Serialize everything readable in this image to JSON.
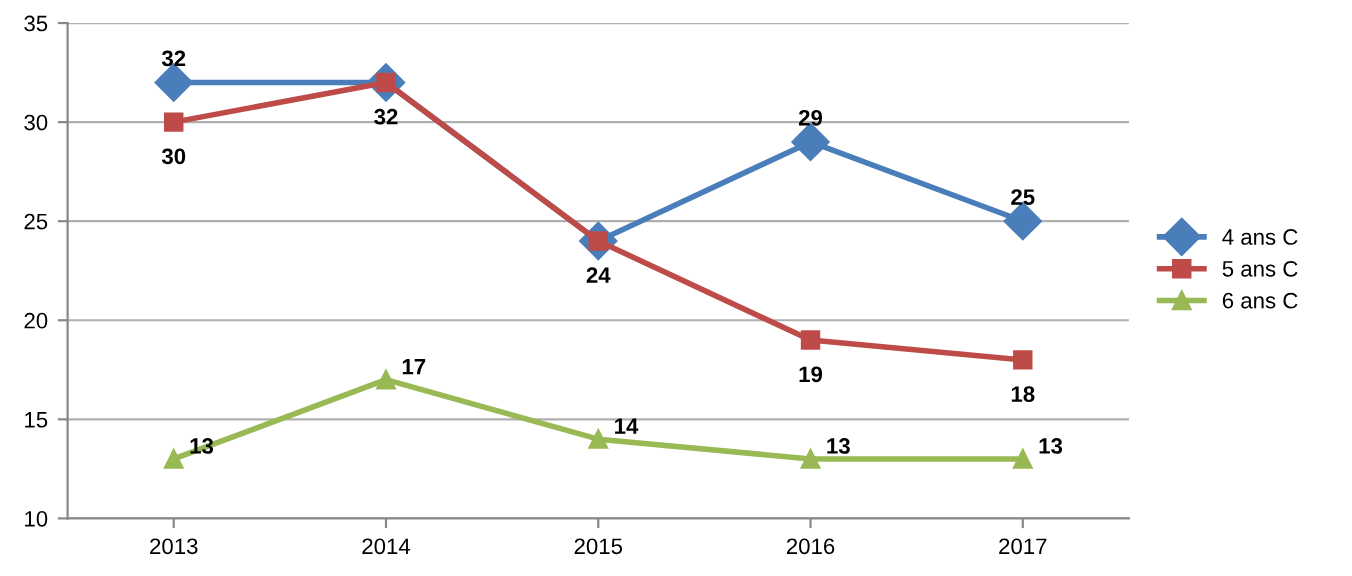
{
  "chart_data": {
    "type": "line",
    "categories": [
      "2013",
      "2014",
      "2015",
      "2016",
      "2017"
    ],
    "series": [
      {
        "name": "4 ans C",
        "color": "#4a7ebb",
        "marker": "diamond",
        "values": [
          32,
          32,
          24,
          29,
          25
        ],
        "value_labels": [
          "32",
          null,
          null,
          "29",
          "25"
        ]
      },
      {
        "name": "5 ans C",
        "color": "#be4b48",
        "marker": "square",
        "values": [
          30,
          32,
          24,
          19,
          18
        ],
        "value_labels": [
          "30",
          "32",
          "24",
          "19",
          "18"
        ]
      },
      {
        "name": "6 ans C",
        "color": "#98b954",
        "marker": "triangle",
        "values": [
          13,
          17,
          14,
          13,
          13
        ],
        "value_labels": [
          "13",
          "17",
          "14",
          "13",
          "13"
        ]
      }
    ],
    "ylim": [
      10,
      35
    ],
    "yticks": [
      10,
      15,
      20,
      25,
      30,
      35
    ],
    "grid": "y",
    "legend": "right"
  }
}
